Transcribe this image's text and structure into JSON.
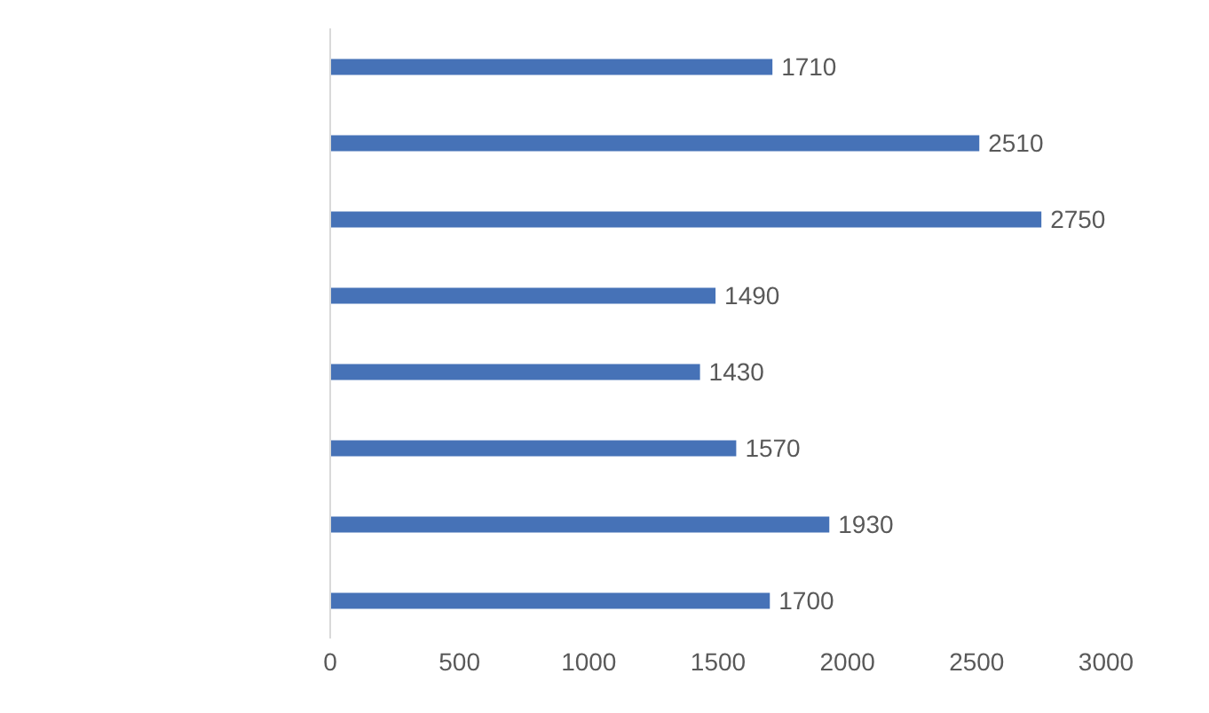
{
  "chart_data": {
    "type": "bar",
    "orientation": "horizontal",
    "categories": [
      null,
      null,
      null,
      null,
      null,
      null,
      null,
      null
    ],
    "values": [
      1710,
      2510,
      2750,
      1490,
      1430,
      1570,
      1930,
      1700
    ],
    "color": "#4672b7",
    "xlim": [
      0,
      3000
    ],
    "xticks": [
      0,
      500,
      1000,
      1500,
      2000,
      2500,
      3000
    ],
    "grid": false,
    "legend": false,
    "data_labels": true
  }
}
